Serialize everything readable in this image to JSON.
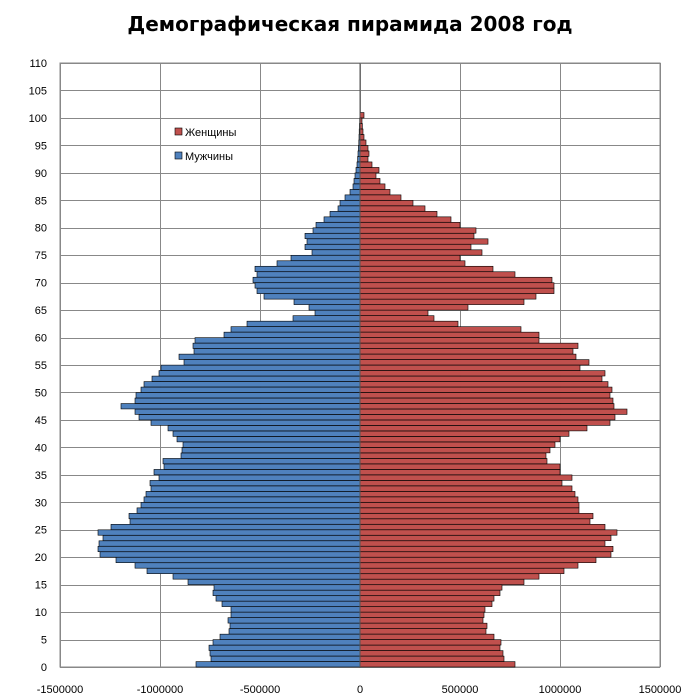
{
  "chart_data": {
    "type": "bar",
    "title": "Демографическая пирамида 2008 год",
    "orientation": "horizontal",
    "x_axis": {
      "range": [
        -1500000,
        1500000
      ],
      "ticks": [
        -1500000,
        -1000000,
        -500000,
        0,
        500000,
        1000000,
        1500000
      ]
    },
    "y_axis": {
      "range": [
        0,
        110
      ],
      "ticks": [
        0,
        5,
        10,
        15,
        20,
        25,
        30,
        35,
        40,
        45,
        50,
        55,
        60,
        65,
        70,
        75,
        80,
        85,
        90,
        95,
        100,
        105,
        110
      ]
    },
    "grid": true,
    "legend": {
      "placement": "top-left"
    },
    "ages": [
      0,
      1,
      2,
      3,
      4,
      5,
      6,
      7,
      8,
      9,
      10,
      11,
      12,
      13,
      14,
      15,
      16,
      17,
      18,
      19,
      20,
      21,
      22,
      23,
      24,
      25,
      26,
      27,
      28,
      29,
      30,
      31,
      32,
      33,
      34,
      35,
      36,
      37,
      38,
      39,
      40,
      41,
      42,
      43,
      44,
      45,
      46,
      47,
      48,
      49,
      50,
      51,
      52,
      53,
      54,
      55,
      56,
      57,
      58,
      59,
      60,
      61,
      62,
      63,
      64,
      65,
      66,
      67,
      68,
      69,
      70,
      71,
      72,
      73,
      74,
      75,
      76,
      77,
      78,
      79,
      80,
      81,
      82,
      83,
      84,
      85,
      86,
      87,
      88,
      89,
      90,
      91,
      92,
      93,
      94,
      95,
      96,
      97,
      98,
      99,
      100
    ],
    "series": [
      {
        "name": "Женщины",
        "color": "#c0504d",
        "values": [
          775000,
          720000,
          715000,
          700000,
          705000,
          670000,
          630000,
          635000,
          615000,
          620000,
          625000,
          660000,
          670000,
          700000,
          710000,
          820000,
          895000,
          1020000,
          1090000,
          1180000,
          1255000,
          1265000,
          1225000,
          1255000,
          1285000,
          1225000,
          1150000,
          1165000,
          1095000,
          1095000,
          1090000,
          1075000,
          1060000,
          1010000,
          1060000,
          1000000,
          1000000,
          935000,
          930000,
          950000,
          975000,
          1000000,
          1045000,
          1135000,
          1250000,
          1275000,
          1335000,
          1270000,
          1265000,
          1250000,
          1260000,
          1240000,
          1210000,
          1225000,
          1100000,
          1145000,
          1080000,
          1065000,
          1090000,
          895000,
          895000,
          805000,
          490000,
          370000,
          340000,
          540000,
          820000,
          880000,
          970000,
          970000,
          960000,
          775000,
          665000,
          525000,
          500000,
          610000,
          555000,
          640000,
          570000,
          580000,
          500000,
          455000,
          385000,
          325000,
          265000,
          205000,
          150000,
          125000,
          100000,
          80000,
          95000,
          60000,
          40000,
          45000,
          40000,
          30000,
          20000,
          15000,
          12000,
          10000,
          20000
        ]
      },
      {
        "name": "Мужчины",
        "color": "#4f81bd",
        "values": [
          820000,
          745000,
          750000,
          755000,
          735000,
          700000,
          655000,
          650000,
          660000,
          645000,
          645000,
          690000,
          720000,
          735000,
          730000,
          860000,
          935000,
          1065000,
          1125000,
          1220000,
          1300000,
          1310000,
          1305000,
          1285000,
          1310000,
          1245000,
          1150000,
          1155000,
          1115000,
          1095000,
          1080000,
          1070000,
          1045000,
          1050000,
          1005000,
          1030000,
          980000,
          985000,
          895000,
          890000,
          885000,
          915000,
          935000,
          960000,
          1045000,
          1105000,
          1125000,
          1195000,
          1125000,
          1120000,
          1095000,
          1080000,
          1040000,
          1005000,
          995000,
          880000,
          905000,
          830000,
          835000,
          825000,
          680000,
          645000,
          565000,
          335000,
          225000,
          255000,
          330000,
          480000,
          515000,
          525000,
          535000,
          515000,
          525000,
          415000,
          345000,
          240000,
          275000,
          265000,
          275000,
          235000,
          220000,
          180000,
          150000,
          110000,
          100000,
          75000,
          50000,
          35000,
          30000,
          25000,
          20000,
          15000,
          12000,
          10000,
          8000,
          6000,
          5000,
          4000,
          3000,
          2000,
          1000
        ]
      }
    ]
  }
}
